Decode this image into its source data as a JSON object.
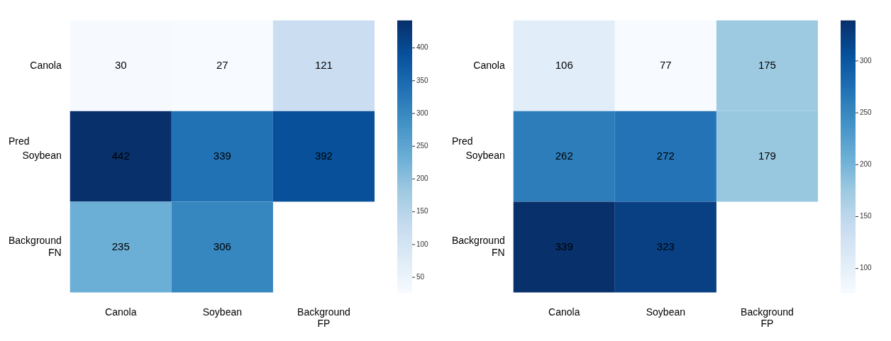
{
  "chart_data": [
    {
      "type": "heatmap",
      "ylabel": "Pred",
      "categories": [
        "Canola",
        "Soybean",
        "Background FP"
      ],
      "y_categories": [
        "Canola",
        "Soybean",
        "Background FN"
      ],
      "cells": [
        [
          30,
          27,
          121
        ],
        [
          442,
          339,
          392
        ],
        [
          235,
          306,
          null
        ]
      ],
      "clim": [
        27,
        442
      ],
      "cticks": [
        50,
        100,
        150,
        200,
        250,
        300,
        350,
        400
      ],
      "data_labels": true
    },
    {
      "type": "heatmap",
      "ylabel": "Pred",
      "categories": [
        "Canola",
        "Soybean",
        "Background FP"
      ],
      "y_categories": [
        "Canola",
        "Soybean",
        "Background FN"
      ],
      "cells": [
        [
          106,
          77,
          175
        ],
        [
          262,
          272,
          179
        ],
        [
          339,
          323,
          null
        ]
      ],
      "clim": [
        77,
        339
      ],
      "cticks": [
        100,
        150,
        200,
        250,
        300
      ],
      "data_labels": true
    }
  ]
}
